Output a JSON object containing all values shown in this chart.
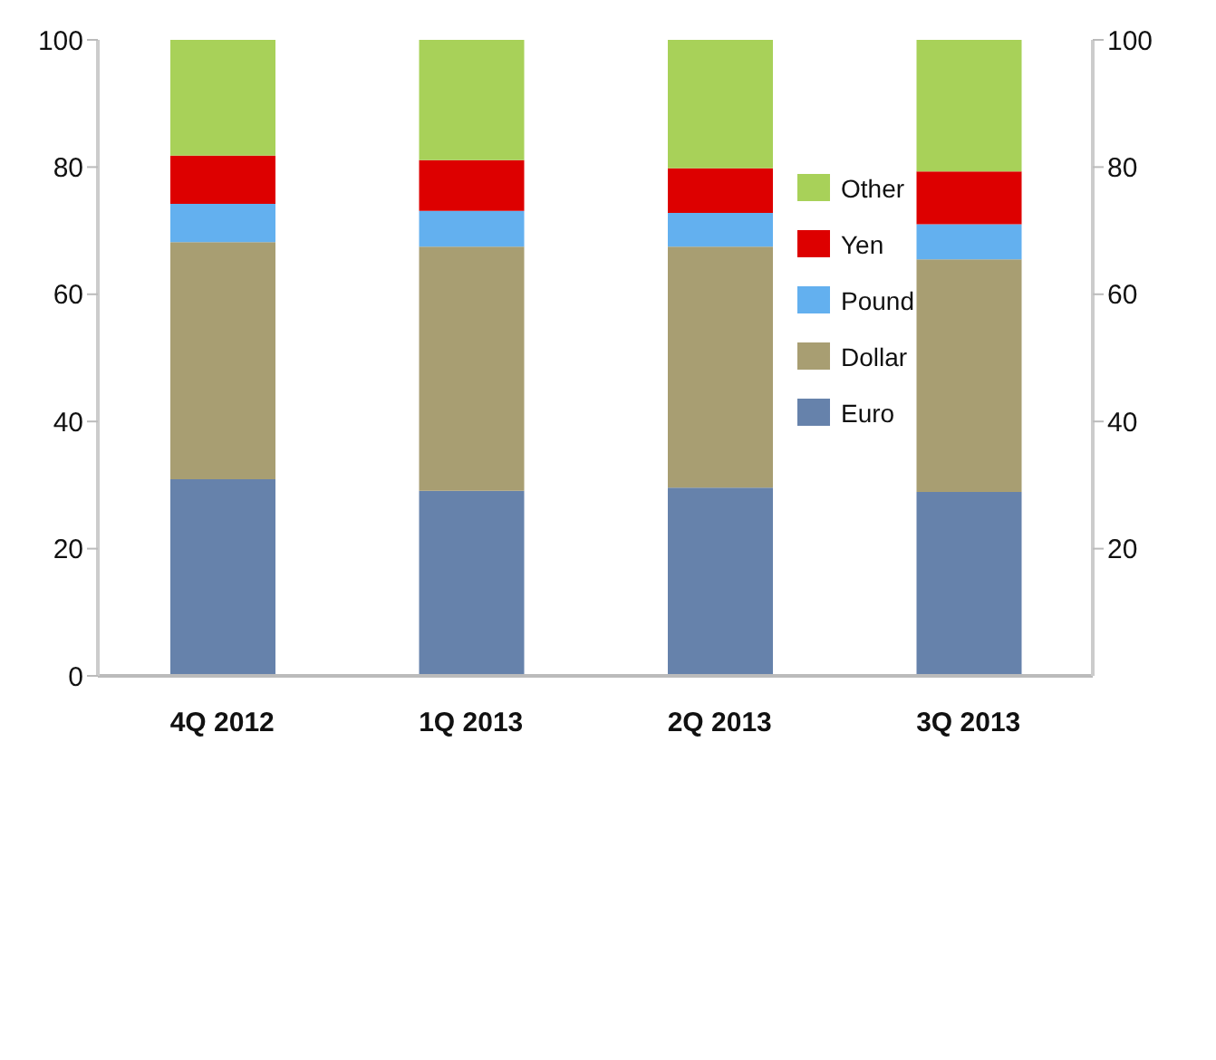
{
  "chart_data": {
    "type": "bar",
    "stacked": true,
    "categories": [
      "4Q 2012",
      "1Q 2013",
      "2Q 2013",
      "3Q 2013"
    ],
    "series": [
      {
        "name": "Euro",
        "color": "#6682ab",
        "values": [
          30.9,
          29.1,
          29.6,
          28.9
        ]
      },
      {
        "name": "Dollar",
        "color": "#a89e72",
        "values": [
          37.3,
          38.4,
          37.9,
          36.6
        ]
      },
      {
        "name": "Pound",
        "color": "#63b0ef",
        "values": [
          6.0,
          5.6,
          5.3,
          5.5
        ]
      },
      {
        "name": "Yen",
        "color": "#dd0000",
        "values": [
          7.6,
          8.0,
          7.0,
          8.3
        ]
      },
      {
        "name": "Other",
        "color": "#a8d159",
        "values": [
          18.2,
          18.9,
          20.2,
          20.7
        ]
      }
    ],
    "ylim": [
      0,
      100
    ],
    "yticks": [
      0,
      20,
      40,
      60,
      80,
      100
    ],
    "y2lim": [
      0,
      100
    ],
    "y2ticks": [
      20,
      40,
      60,
      80,
      100
    ],
    "grid": false,
    "legend": "top right"
  }
}
